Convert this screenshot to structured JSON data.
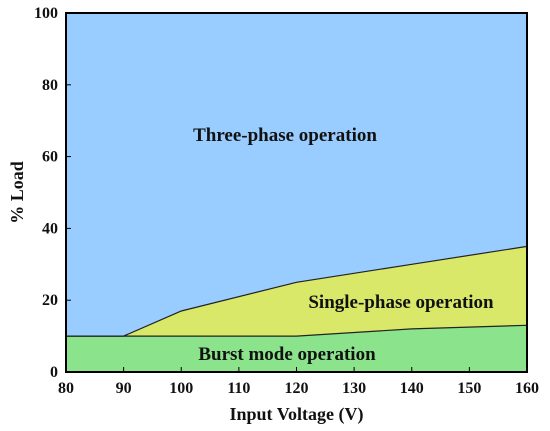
{
  "chart_data": {
    "type": "area",
    "xlabel": "Input Voltage (V)",
    "ylabel": "% Load",
    "xlim": [
      80,
      160
    ],
    "ylim": [
      0,
      100
    ],
    "x_ticks": [
      80,
      90,
      100,
      110,
      120,
      130,
      140,
      150,
      160
    ],
    "y_ticks": [
      0,
      20,
      40,
      60,
      80,
      100
    ],
    "grid": false,
    "regions": [
      {
        "name": "Three-phase operation",
        "color": "#99CCFF",
        "lower_boundary": [
          [
            80,
            10
          ],
          [
            90,
            10
          ],
          [
            100,
            17
          ],
          [
            120,
            25
          ],
          [
            140,
            30
          ],
          [
            160,
            35
          ]
        ],
        "upper_boundary": [
          [
            80,
            100
          ],
          [
            160,
            100
          ]
        ]
      },
      {
        "name": "Single-phase operation",
        "color": "#D9E868",
        "lower_boundary": [
          [
            80,
            10
          ],
          [
            120,
            10
          ],
          [
            140,
            12
          ],
          [
            160,
            13
          ]
        ],
        "upper_boundary": [
          [
            80,
            10
          ],
          [
            90,
            10
          ],
          [
            100,
            17
          ],
          [
            120,
            25
          ],
          [
            140,
            30
          ],
          [
            160,
            35
          ]
        ]
      },
      {
        "name": "Burst mode operation",
        "color": "#8BE38B",
        "lower_boundary": [
          [
            80,
            0
          ],
          [
            160,
            0
          ]
        ],
        "upper_boundary": [
          [
            80,
            10
          ],
          [
            120,
            10
          ],
          [
            140,
            12
          ],
          [
            160,
            13
          ]
        ]
      }
    ]
  }
}
